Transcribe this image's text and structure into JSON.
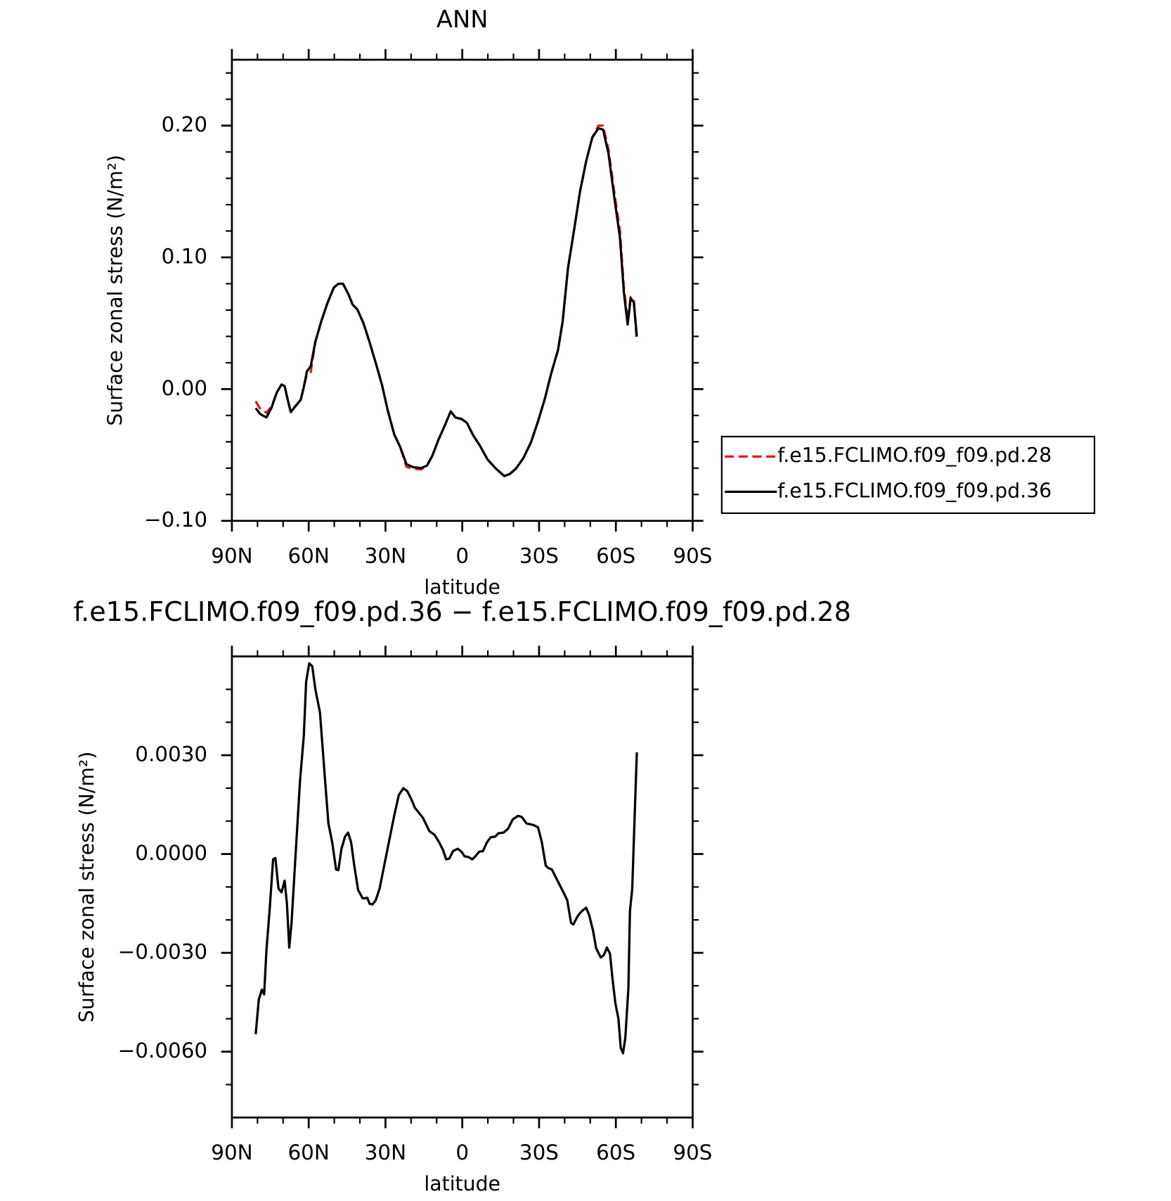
{
  "chart_data": [
    {
      "type": "line",
      "title": "ANN",
      "xlabel": "latitude",
      "ylabel": "Surface zonal stress (N/m²)",
      "xlim": [
        90,
        -90
      ],
      "ylim": [
        -0.1,
        0.25
      ],
      "xticks": [
        {
          "value": 90,
          "label": "90N"
        },
        {
          "value": 60,
          "label": "60N"
        },
        {
          "value": 30,
          "label": "30N"
        },
        0,
        {
          "value": -30,
          "label": "30S"
        },
        {
          "value": -60,
          "label": "60S"
        },
        {
          "value": -90,
          "label": "90S"
        }
      ],
      "xminorticks": [
        80,
        70,
        50,
        40,
        20,
        10,
        -10,
        -20,
        -40,
        -50,
        -70,
        -80
      ],
      "yticks": [
        {
          "value": -0.1,
          "label": "−0.10"
        },
        {
          "value": 0,
          "label": "0.00"
        },
        {
          "value": 0.1,
          "label": "0.10"
        },
        {
          "value": 0.2,
          "label": "0.20"
        }
      ],
      "yminorticks": [
        -0.08,
        -0.06,
        -0.04,
        -0.02,
        0.02,
        0.04,
        0.06,
        0.08,
        0.12,
        0.14,
        0.16,
        0.18,
        0.22,
        0.24
      ],
      "grid": false,
      "legend_position": "right",
      "x": [
        80.7,
        78.9,
        76.5,
        74.5,
        72.4,
        70.6,
        69.4,
        68.2,
        67,
        64.6,
        63.1,
        61.9,
        60.7,
        59.2,
        57.4,
        55,
        52.6,
        50.2,
        48.4,
        46.6,
        44.5,
        42.8,
        41,
        38.6,
        36.2,
        33.8,
        31.4,
        29.1,
        26.6,
        24.2,
        21.8,
        19.1,
        16.1,
        13.8,
        11.7,
        9.3,
        6.9,
        4.5,
        2.7,
        0.3,
        -1.8,
        -4.2,
        -6.9,
        -9.9,
        -13.2,
        -16.4,
        -18.5,
        -20.9,
        -23.9,
        -26.9,
        -29.6,
        -32.3,
        -34.7,
        -37.4,
        -39.2,
        -41.3,
        -43.7,
        -46,
        -48.4,
        -50.8,
        -53.2,
        -55,
        -57.1,
        -59.5,
        -61.6,
        -63.1,
        -64.6,
        -65.8,
        -67,
        -68.2
      ],
      "series": [
        {
          "name": "f.e15.FCLIMO.f09_f09.pd.28",
          "color": "#e8141a",
          "linestyle": "dashed",
          "values": [
            -0.0093,
            -0.015,
            -0.018,
            -0.013,
            -0.0023,
            0.0035,
            0.0023,
            -0.0081,
            -0.0174,
            -0.0116,
            -0.0081,
            0.0017,
            0.011,
            0.013,
            0.036,
            0.052,
            0.0657,
            0.077,
            0.08,
            0.08,
            0.0721,
            0.064,
            0.0605,
            0.05,
            0.0355,
            0.0198,
            0.0035,
            -0.0163,
            -0.0343,
            -0.0442,
            -0.059,
            -0.0605,
            -0.061,
            -0.0581,
            -0.0506,
            -0.0384,
            -0.0279,
            -0.0169,
            -0.0215,
            -0.0227,
            -0.0256,
            -0.0349,
            -0.043,
            -0.0535,
            -0.0605,
            -0.066,
            -0.0645,
            -0.0605,
            -0.0523,
            -0.0401,
            -0.0244,
            -0.007,
            0.0116,
            0.0297,
            0.0512,
            0.0919,
            0.121,
            0.15,
            0.173,
            0.191,
            0.2,
            0.2,
            0.182,
            0.148,
            0.12,
            0.078,
            0.052,
            0.07,
            0.068,
            0.036
          ]
        },
        {
          "name": "f.e15.FCLIMO.f09_f09.pd.36",
          "color": "#000000",
          "linestyle": "solid",
          "values": [
            -0.0145,
            -0.019,
            -0.0215,
            -0.014,
            -0.0023,
            0.0035,
            0.0023,
            -0.0081,
            -0.0174,
            -0.0116,
            -0.0081,
            0.0017,
            0.0134,
            0.0174,
            0.036,
            0.052,
            0.0657,
            0.077,
            0.08,
            0.08,
            0.0721,
            0.064,
            0.0605,
            0.05,
            0.0355,
            0.0198,
            0.0035,
            -0.0163,
            -0.0343,
            -0.0442,
            -0.057,
            -0.0593,
            -0.0599,
            -0.0581,
            -0.0506,
            -0.0384,
            -0.0279,
            -0.0169,
            -0.0215,
            -0.0227,
            -0.0256,
            -0.0349,
            -0.043,
            -0.0535,
            -0.0605,
            -0.066,
            -0.0645,
            -0.0605,
            -0.0523,
            -0.0401,
            -0.0244,
            -0.007,
            0.0116,
            0.0297,
            0.0512,
            0.0919,
            0.121,
            0.15,
            0.173,
            0.191,
            0.198,
            0.197,
            0.179,
            0.144,
            0.115,
            0.074,
            0.049,
            0.069,
            0.066,
            0.04
          ]
        }
      ]
    },
    {
      "type": "line",
      "title": "f.e15.FCLIMO.f09_f09.pd.36 − f.e15.FCLIMO.f09_f09.pd.28",
      "xlabel": "latitude",
      "ylabel": "Surface zonal stress (N/m²)",
      "xlim": [
        90,
        -90
      ],
      "ylim": [
        -0.008,
        0.006
      ],
      "xticks": [
        {
          "value": 90,
          "label": "90N"
        },
        {
          "value": 60,
          "label": "60N"
        },
        {
          "value": 30,
          "label": "30N"
        },
        0,
        {
          "value": -30,
          "label": "30S"
        },
        {
          "value": -60,
          "label": "60S"
        },
        {
          "value": -90,
          "label": "90S"
        }
      ],
      "xminorticks": [
        80,
        70,
        50,
        40,
        20,
        10,
        -10,
        -20,
        -40,
        -50,
        -70,
        -80
      ],
      "yticks": [
        {
          "value": -0.006,
          "label": "−0.0060"
        },
        {
          "value": -0.003,
          "label": "−0.0030"
        },
        {
          "value": 0,
          "label": "0.0000"
        },
        {
          "value": 0.003,
          "label": "0.0030"
        }
      ],
      "yminorticks": [
        -0.007,
        -0.005,
        -0.004,
        -0.002,
        -0.001,
        0.001,
        0.002,
        0.004,
        0.005
      ],
      "grid": false,
      "color": "#000000",
      "x": [
        80.7,
        79.5,
        78.3,
        77.4,
        76.5,
        75.3,
        73.9,
        73,
        71.8,
        70.6,
        69.4,
        68.5,
        67.6,
        66.7,
        65.2,
        63.4,
        61.9,
        61,
        59.8,
        58.6,
        57.4,
        55.6,
        53.8,
        52.3,
        50.8,
        49.3,
        48.4,
        47.2,
        45.8,
        44.6,
        43.4,
        42.2,
        40.7,
        38.9,
        37.1,
        36.2,
        35,
        33.8,
        32.3,
        30.5,
        28.7,
        26.6,
        24.8,
        23,
        21.5,
        19.7,
        18.5,
        16.7,
        15.3,
        12.9,
        10.8,
        9,
        7.5,
        6.3,
        5.1,
        3.6,
        1.8,
        0.3,
        -0.9,
        -2.4,
        -3.9,
        -5.1,
        -6.6,
        -8.1,
        -9.6,
        -11.1,
        -12.9,
        -14.1,
        -16.1,
        -17.9,
        -19.7,
        -21.8,
        -23.3,
        -25.1,
        -27.8,
        -29.6,
        -31.1,
        -32.6,
        -33.5,
        -35,
        -36.5,
        -38,
        -39.5,
        -41,
        -42.5,
        -43.4,
        -44.9,
        -46,
        -47.2,
        -48.4,
        -49.6,
        -51.1,
        -52.3,
        -54.1,
        -55.3,
        -56.5,
        -57.7,
        -58.6,
        -59.8,
        -61,
        -61.9,
        -62.8,
        -63.7,
        -64.9,
        -65.5,
        -66.4,
        -67.3,
        -68.2
      ],
      "values": [
        -0.00547,
        -0.00442,
        -0.00412,
        -0.00426,
        -0.00291,
        -0.00174,
        -0.00016,
        -0.00012,
        -0.00105,
        -0.00116,
        -0.00081,
        -0.00151,
        -0.00284,
        -0.00209,
        -0.00012,
        0.00221,
        0.0036,
        0.00523,
        0.00579,
        0.0057,
        0.005,
        0.0043,
        0.00244,
        0.00093,
        0.00035,
        -0.00047,
        -0.00049,
        0.00016,
        0.00053,
        0.00065,
        0.00035,
        -0.00035,
        -0.00109,
        -0.00135,
        -0.00133,
        -0.00151,
        -0.00153,
        -0.0014,
        -0.00105,
        -0.00035,
        0.00035,
        0.00116,
        0.00179,
        0.002,
        0.00191,
        0.00163,
        0.0014,
        0.00123,
        0.00109,
        0.0007,
        0.00058,
        0.00035,
        0.00012,
        -0.00016,
        -0.00014,
        9e-05,
        0.00016,
        7e-05,
        -7e-05,
        -9e-05,
        -0.00016,
        -7e-05,
        7e-05,
        9e-05,
        0.00035,
        0.00051,
        0.00053,
        0.00063,
        0.00065,
        0.00077,
        0.00105,
        0.00116,
        0.00112,
        0.00093,
        0.00088,
        0.00081,
        0.00035,
        -0.00035,
        -0.00042,
        -0.00047,
        -0.0007,
        -0.00093,
        -0.00116,
        -0.0014,
        -0.00209,
        -0.00214,
        -0.00191,
        -0.00179,
        -0.0017,
        -0.00163,
        -0.00186,
        -0.00233,
        -0.00286,
        -0.00314,
        -0.00307,
        -0.00284,
        -0.00302,
        -0.00372,
        -0.00453,
        -0.005,
        -0.00588,
        -0.00605,
        -0.00558,
        -0.00407,
        -0.00174,
        -0.00105,
        0.00105,
        0.00309
      ]
    }
  ]
}
